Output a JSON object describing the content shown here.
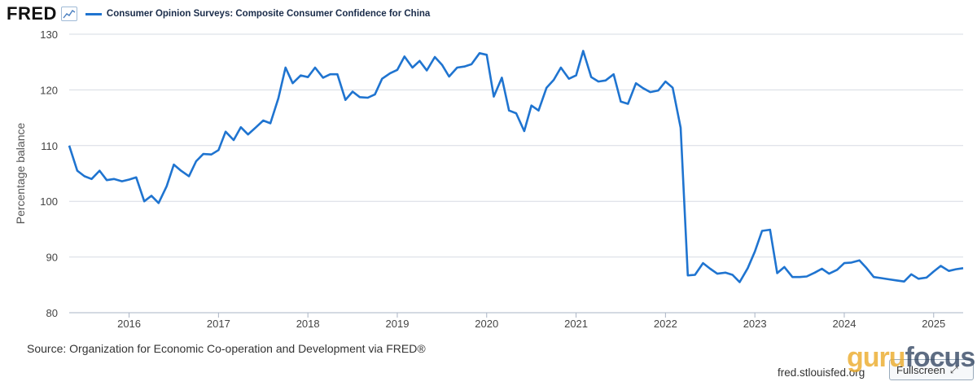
{
  "header": {
    "logo_text": "FRED",
    "graph_icon": "line-chart-icon",
    "series_label": "Consumer Opinion Surveys: Composite Consumer Confidence for China",
    "series_color": "#1f74d0"
  },
  "footer": {
    "source": "Source: Organization for Economic Co-operation and Development via FRED®",
    "site": "fred.stlouisfed.org",
    "fullscreen_label": "Fullscreen",
    "fullscreen_icon": "expand-icon",
    "watermark_a": "guru",
    "watermark_b": "focus"
  },
  "chart_data": {
    "type": "line",
    "title": "",
    "xlabel": "",
    "ylabel": "Percentage balance",
    "ylim": [
      80,
      130
    ],
    "yticks": [
      80,
      90,
      100,
      110,
      120,
      130
    ],
    "xlim": [
      2015.33,
      2025.33
    ],
    "xticks": [
      {
        "value": 2016,
        "label": "2016"
      },
      {
        "value": 2017,
        "label": "2017"
      },
      {
        "value": 2018,
        "label": "2018"
      },
      {
        "value": 2019,
        "label": "2019"
      },
      {
        "value": 2020,
        "label": "2020"
      },
      {
        "value": 2021,
        "label": "2021"
      },
      {
        "value": 2022,
        "label": "2022"
      },
      {
        "value": 2023,
        "label": "2023"
      },
      {
        "value": 2024,
        "label": "2024"
      },
      {
        "value": 2025,
        "label": "2025"
      }
    ],
    "grid": true,
    "series": [
      {
        "name": "Consumer Opinion Surveys: Composite Consumer Confidence for China",
        "color": "#1f74d0",
        "points": [
          [
            2015.33,
            110.0
          ],
          [
            2015.42,
            105.5
          ],
          [
            2015.5,
            104.5
          ],
          [
            2015.58,
            104.0
          ],
          [
            2015.67,
            105.5
          ],
          [
            2015.75,
            103.8
          ],
          [
            2015.83,
            104.0
          ],
          [
            2015.92,
            103.6
          ],
          [
            2016.0,
            103.9
          ],
          [
            2016.08,
            104.3
          ],
          [
            2016.17,
            100.0
          ],
          [
            2016.25,
            101.0
          ],
          [
            2016.33,
            99.7
          ],
          [
            2016.42,
            102.7
          ],
          [
            2016.5,
            106.6
          ],
          [
            2016.58,
            105.5
          ],
          [
            2016.67,
            104.5
          ],
          [
            2016.75,
            107.2
          ],
          [
            2016.83,
            108.5
          ],
          [
            2016.92,
            108.4
          ],
          [
            2017.0,
            109.2
          ],
          [
            2017.08,
            112.5
          ],
          [
            2017.17,
            111.0
          ],
          [
            2017.25,
            113.3
          ],
          [
            2017.33,
            112.0
          ],
          [
            2017.42,
            113.3
          ],
          [
            2017.5,
            114.5
          ],
          [
            2017.58,
            114.0
          ],
          [
            2017.67,
            118.5
          ],
          [
            2017.75,
            124.0
          ],
          [
            2017.83,
            121.2
          ],
          [
            2017.92,
            122.6
          ],
          [
            2018.0,
            122.3
          ],
          [
            2018.08,
            124.0
          ],
          [
            2018.17,
            122.2
          ],
          [
            2018.25,
            122.8
          ],
          [
            2018.33,
            122.8
          ],
          [
            2018.42,
            118.2
          ],
          [
            2018.5,
            119.7
          ],
          [
            2018.58,
            118.7
          ],
          [
            2018.67,
            118.6
          ],
          [
            2018.75,
            119.2
          ],
          [
            2018.83,
            122.0
          ],
          [
            2018.92,
            123.0
          ],
          [
            2019.0,
            123.6
          ],
          [
            2019.08,
            126.0
          ],
          [
            2019.17,
            124.0
          ],
          [
            2019.25,
            125.2
          ],
          [
            2019.33,
            123.5
          ],
          [
            2019.42,
            125.9
          ],
          [
            2019.5,
            124.5
          ],
          [
            2019.58,
            122.4
          ],
          [
            2019.67,
            124.0
          ],
          [
            2019.75,
            124.2
          ],
          [
            2019.83,
            124.6
          ],
          [
            2019.92,
            126.6
          ],
          [
            2020.0,
            126.3
          ],
          [
            2020.08,
            118.8
          ],
          [
            2020.17,
            122.2
          ],
          [
            2020.25,
            116.3
          ],
          [
            2020.33,
            115.8
          ],
          [
            2020.42,
            112.6
          ],
          [
            2020.5,
            117.2
          ],
          [
            2020.58,
            116.3
          ],
          [
            2020.67,
            120.4
          ],
          [
            2020.75,
            121.8
          ],
          [
            2020.83,
            124.0
          ],
          [
            2020.92,
            122.0
          ],
          [
            2021.0,
            122.6
          ],
          [
            2021.08,
            127.0
          ],
          [
            2021.17,
            122.3
          ],
          [
            2021.25,
            121.5
          ],
          [
            2021.33,
            121.7
          ],
          [
            2021.42,
            122.8
          ],
          [
            2021.5,
            117.9
          ],
          [
            2021.58,
            117.5
          ],
          [
            2021.67,
            121.2
          ],
          [
            2021.75,
            120.3
          ],
          [
            2021.83,
            119.6
          ],
          [
            2021.92,
            119.9
          ],
          [
            2022.0,
            121.5
          ],
          [
            2022.08,
            120.4
          ],
          [
            2022.17,
            113.2
          ],
          [
            2022.25,
            86.7
          ],
          [
            2022.33,
            86.8
          ],
          [
            2022.42,
            88.9
          ],
          [
            2022.5,
            87.9
          ],
          [
            2022.58,
            87.0
          ],
          [
            2022.67,
            87.2
          ],
          [
            2022.75,
            86.8
          ],
          [
            2022.83,
            85.5
          ],
          [
            2022.92,
            88.0
          ],
          [
            2023.0,
            91.0
          ],
          [
            2023.08,
            94.7
          ],
          [
            2023.17,
            94.9
          ],
          [
            2023.25,
            87.1
          ],
          [
            2023.33,
            88.2
          ],
          [
            2023.42,
            86.4
          ],
          [
            2023.5,
            86.4
          ],
          [
            2023.58,
            86.5
          ],
          [
            2023.67,
            87.2
          ],
          [
            2023.75,
            87.9
          ],
          [
            2023.83,
            87.0
          ],
          [
            2023.92,
            87.7
          ],
          [
            2024.0,
            88.9
          ],
          [
            2024.08,
            89.0
          ],
          [
            2024.17,
            89.4
          ],
          [
            2024.25,
            88.0
          ],
          [
            2024.33,
            86.4
          ],
          [
            2024.42,
            86.2
          ],
          [
            2024.5,
            86.0
          ],
          [
            2024.58,
            85.8
          ],
          [
            2024.67,
            85.6
          ],
          [
            2024.75,
            86.9
          ],
          [
            2024.83,
            86.1
          ],
          [
            2024.92,
            86.3
          ],
          [
            2025.0,
            87.4
          ],
          [
            2025.08,
            88.4
          ],
          [
            2025.17,
            87.5
          ],
          [
            2025.25,
            87.8
          ],
          [
            2025.33,
            88.0
          ]
        ]
      }
    ]
  }
}
